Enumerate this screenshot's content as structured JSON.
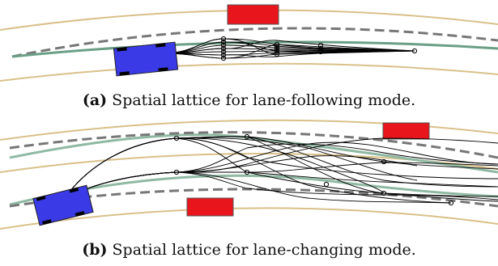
{
  "figure": {
    "panel_a": {
      "label": "(a)",
      "caption": "Spatial lattice for lane-following mode."
    },
    "panel_b": {
      "label": "(b)",
      "caption": "Spatial lattice for lane-changing mode."
    }
  },
  "colors": {
    "lane_boundary": "#d9c08a",
    "reference_path": "#6a9f86",
    "predicted_path": "#777777",
    "ego_vehicle": "#3a3ae6",
    "obstacle": "#e8151c",
    "lattice": "#000000"
  }
}
